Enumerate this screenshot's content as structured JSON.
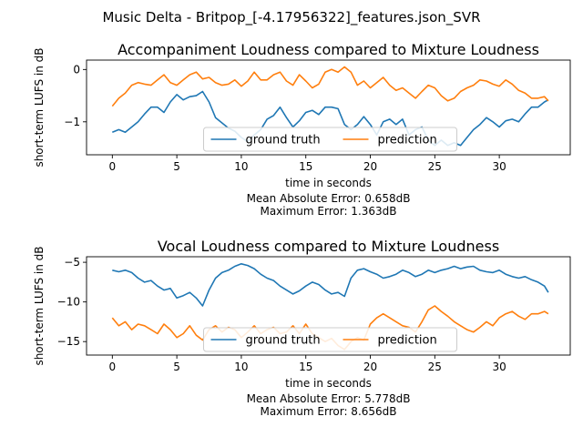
{
  "figure": {
    "suptitle": "Music Delta - Britpop_[-4.17956322]_features.json_SVR"
  },
  "chart_data": [
    {
      "type": "line",
      "title": "Accompaniment Loudness compared to Mixture Loudness",
      "xlabel": "time in seconds",
      "ylabel": "short-term LUFS in dB",
      "xlim": [
        -2.0,
        35.5
      ],
      "ylim": [
        -1.63,
        0.18
      ],
      "xticks": [
        0,
        5,
        10,
        15,
        20,
        25,
        30
      ],
      "yticks": [
        -1,
        0
      ],
      "legend": {
        "position": "lower center",
        "columns": 2
      },
      "grid": false,
      "metrics": [
        "Mean Absolute Error: 0.658dB",
        "Maximum Error: 1.363dB"
      ],
      "series": [
        {
          "name": "ground truth",
          "color": "#1f77b4",
          "x": [
            0,
            0.5,
            1,
            1.5,
            2,
            2.5,
            3,
            3.5,
            4,
            4.5,
            5,
            5.5,
            6,
            6.5,
            7,
            7.5,
            8,
            8.5,
            9,
            9.5,
            10,
            10.5,
            11,
            11.5,
            12,
            12.5,
            13,
            13.5,
            14,
            14.5,
            15,
            15.5,
            16,
            16.5,
            17,
            17.5,
            18,
            18.5,
            19,
            19.5,
            20,
            20.5,
            21,
            21.5,
            22,
            22.5,
            23,
            23.5,
            24,
            24.5,
            25,
            25.5,
            26,
            26.5,
            27,
            27.5,
            28,
            28.5,
            29,
            29.5,
            30,
            30.5,
            31,
            31.5,
            32,
            32.5,
            33,
            33.5,
            33.8
          ],
          "y": [
            -1.2,
            -1.15,
            -1.2,
            -1.1,
            -1.0,
            -0.85,
            -0.72,
            -0.72,
            -0.82,
            -0.62,
            -0.48,
            -0.58,
            -0.52,
            -0.5,
            -0.42,
            -0.62,
            -0.92,
            -1.02,
            -1.12,
            -1.18,
            -1.3,
            -1.38,
            -1.25,
            -1.15,
            -0.95,
            -0.88,
            -0.72,
            -0.92,
            -1.1,
            -0.98,
            -0.82,
            -0.78,
            -0.86,
            -0.72,
            -0.72,
            -0.75,
            -1.05,
            -1.15,
            -1.05,
            -0.9,
            -1.05,
            -1.25,
            -1.0,
            -0.95,
            -1.05,
            -0.95,
            -1.25,
            -1.15,
            -1.1,
            -1.35,
            -1.45,
            -1.35,
            -1.45,
            -1.4,
            -1.45,
            -1.3,
            -1.15,
            -1.05,
            -0.92,
            -1.0,
            -1.1,
            -0.98,
            -0.95,
            -1.0,
            -0.85,
            -0.72,
            -0.72,
            -0.62,
            -0.58
          ]
        },
        {
          "name": "prediction",
          "color": "#ff7f0e",
          "x": [
            0,
            0.5,
            1,
            1.5,
            2,
            2.5,
            3,
            3.5,
            4,
            4.5,
            5,
            5.5,
            6,
            6.5,
            7,
            7.5,
            8,
            8.5,
            9,
            9.5,
            10,
            10.5,
            11,
            11.5,
            12,
            12.5,
            13,
            13.5,
            14,
            14.5,
            15,
            15.5,
            16,
            16.5,
            17,
            17.5,
            18,
            18.5,
            19,
            19.5,
            20,
            20.5,
            21,
            21.5,
            22,
            22.5,
            23,
            23.5,
            24,
            24.5,
            25,
            25.5,
            26,
            26.5,
            27,
            27.5,
            28,
            28.5,
            29,
            29.5,
            30,
            30.5,
            31,
            31.5,
            32,
            32.5,
            33,
            33.5,
            33.8
          ],
          "y": [
            -0.7,
            -0.55,
            -0.45,
            -0.3,
            -0.25,
            -0.28,
            -0.3,
            -0.2,
            -0.1,
            -0.25,
            -0.3,
            -0.2,
            -0.1,
            -0.05,
            -0.18,
            -0.15,
            -0.25,
            -0.3,
            -0.28,
            -0.2,
            -0.32,
            -0.22,
            -0.05,
            -0.2,
            -0.2,
            -0.1,
            -0.05,
            -0.22,
            -0.3,
            -0.1,
            -0.22,
            -0.35,
            -0.28,
            -0.05,
            0.0,
            -0.05,
            0.05,
            -0.05,
            -0.3,
            -0.22,
            -0.35,
            -0.25,
            -0.15,
            -0.3,
            -0.4,
            -0.35,
            -0.45,
            -0.55,
            -0.42,
            -0.3,
            -0.35,
            -0.5,
            -0.6,
            -0.55,
            -0.42,
            -0.35,
            -0.3,
            -0.2,
            -0.22,
            -0.28,
            -0.32,
            -0.2,
            -0.28,
            -0.4,
            -0.45,
            -0.55,
            -0.55,
            -0.52,
            -0.6
          ]
        }
      ]
    },
    {
      "type": "line",
      "title": "Vocal Loudness compared to Mixture Loudness",
      "xlabel": "time in seconds",
      "ylabel": "short-term LUFS in dB",
      "xlim": [
        -2.0,
        35.5
      ],
      "ylim": [
        -16.7,
        -4.3
      ],
      "xticks": [
        0,
        5,
        10,
        15,
        20,
        25,
        30
      ],
      "yticks": [
        -15,
        -10,
        -5
      ],
      "legend": {
        "position": "lower center",
        "columns": 2
      },
      "grid": false,
      "metrics": [
        "Mean Absolute Error: 5.778dB",
        "Maximum Error: 8.656dB"
      ],
      "series": [
        {
          "name": "ground truth",
          "color": "#1f77b4",
          "x": [
            0,
            0.5,
            1,
            1.5,
            2,
            2.5,
            3,
            3.5,
            4,
            4.5,
            5,
            5.5,
            6,
            6.5,
            7,
            7.5,
            8,
            8.5,
            9,
            9.5,
            10,
            10.5,
            11,
            11.5,
            12,
            12.5,
            13,
            13.5,
            14,
            14.5,
            15,
            15.5,
            16,
            16.5,
            17,
            17.5,
            18,
            18.5,
            19,
            19.5,
            20,
            20.5,
            21,
            21.5,
            22,
            22.5,
            23,
            23.5,
            24,
            24.5,
            25,
            25.5,
            26,
            26.5,
            27,
            27.5,
            28,
            28.5,
            29,
            29.5,
            30,
            30.5,
            31,
            31.5,
            32,
            32.5,
            33,
            33.5,
            33.8
          ],
          "y": [
            -6.0,
            -6.2,
            -6.0,
            -6.3,
            -7.0,
            -7.5,
            -7.3,
            -8.0,
            -8.5,
            -8.3,
            -9.5,
            -9.2,
            -8.8,
            -9.5,
            -10.5,
            -8.5,
            -7.0,
            -6.3,
            -6.0,
            -5.5,
            -5.2,
            -5.4,
            -5.8,
            -6.5,
            -7.0,
            -7.3,
            -8.0,
            -8.5,
            -9.0,
            -8.6,
            -8.0,
            -7.5,
            -7.8,
            -8.5,
            -9.0,
            -8.8,
            -9.3,
            -7.0,
            -6.0,
            -5.8,
            -6.2,
            -6.5,
            -7.0,
            -6.8,
            -6.5,
            -6.0,
            -6.3,
            -6.8,
            -6.5,
            -6.0,
            -6.3,
            -6.0,
            -5.8,
            -5.5,
            -5.8,
            -5.6,
            -5.5,
            -6.0,
            -6.2,
            -6.3,
            -6.0,
            -6.5,
            -6.8,
            -7.0,
            -6.8,
            -7.2,
            -7.5,
            -8.0,
            -8.8
          ]
        },
        {
          "name": "prediction",
          "color": "#ff7f0e",
          "x": [
            0,
            0.5,
            1,
            1.5,
            2,
            2.5,
            3,
            3.5,
            4,
            4.5,
            5,
            5.5,
            6,
            6.5,
            7,
            7.5,
            8,
            8.5,
            9,
            9.5,
            10,
            10.5,
            11,
            11.5,
            12,
            12.5,
            13,
            13.5,
            14,
            14.5,
            15,
            15.5,
            16,
            16.5,
            17,
            17.5,
            18,
            18.5,
            19,
            19.5,
            20,
            20.5,
            21,
            21.5,
            22,
            22.5,
            23,
            23.5,
            24,
            24.5,
            25,
            25.5,
            26,
            26.5,
            27,
            27.5,
            28,
            28.5,
            29,
            29.5,
            30,
            30.5,
            31,
            31.5,
            32,
            32.5,
            33,
            33.5,
            33.8
          ],
          "y": [
            -12.0,
            -13.0,
            -12.5,
            -13.5,
            -12.8,
            -13.0,
            -13.5,
            -14.0,
            -12.8,
            -13.5,
            -14.5,
            -14.0,
            -13.0,
            -14.2,
            -14.8,
            -13.5,
            -13.0,
            -13.8,
            -13.2,
            -13.5,
            -14.5,
            -13.8,
            -13.0,
            -14.0,
            -13.5,
            -13.2,
            -14.0,
            -13.8,
            -13.0,
            -14.0,
            -12.8,
            -14.0,
            -14.5,
            -15.0,
            -14.6,
            -15.5,
            -16.0,
            -15.0,
            -14.5,
            -14.8,
            -12.8,
            -12.0,
            -11.5,
            -12.0,
            -12.5,
            -13.0,
            -13.2,
            -13.8,
            -12.5,
            -11.0,
            -10.5,
            -11.2,
            -11.8,
            -12.5,
            -13.0,
            -13.5,
            -13.8,
            -13.2,
            -12.5,
            -13.0,
            -12.0,
            -11.5,
            -11.2,
            -11.8,
            -12.2,
            -11.5,
            -11.5,
            -11.2,
            -11.5
          ]
        }
      ]
    }
  ]
}
